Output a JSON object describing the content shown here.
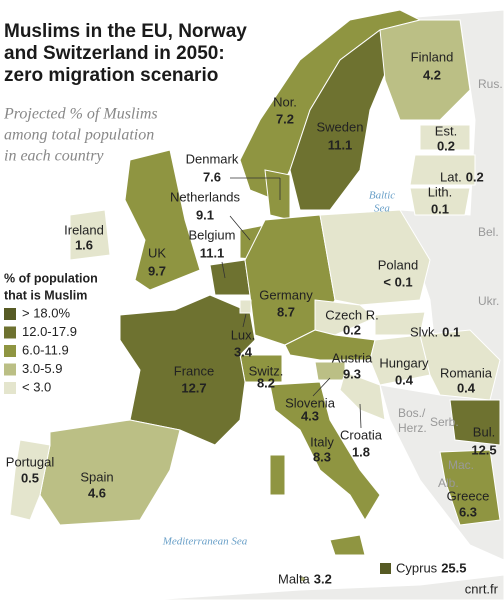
{
  "title_lines": [
    "Muslims in the EU, Norway",
    "and Switzerland in 2050:",
    "zero migration scenario"
  ],
  "subtitle_lines": [
    "Projected % of Muslims",
    "among total population",
    "in each country"
  ],
  "legend": {
    "title_lines": [
      "% of population",
      "that is Muslim"
    ],
    "items": [
      {
        "label": "> 18.0%",
        "color": "#565a24"
      },
      {
        "label": "12.0-17.9",
        "color": "#6e7230"
      },
      {
        "label": "6.0-11.9",
        "color": "#8f9541"
      },
      {
        "label": "3.0-5.9",
        "color": "#bbbf85"
      },
      {
        "label": "< 3.0",
        "color": "#e4e5cd"
      }
    ]
  },
  "countries": [
    {
      "name": "Finland",
      "value": "4.2"
    },
    {
      "name": "Nor.",
      "value": "7.2"
    },
    {
      "name": "Sweden",
      "value": "11.1"
    },
    {
      "name": "Est.",
      "value": "0.2"
    },
    {
      "name": "Lat.",
      "value": "0.2"
    },
    {
      "name": "Lith.",
      "value": "0.1"
    },
    {
      "name": "Denmark",
      "value": "7.6"
    },
    {
      "name": "Netherlands",
      "value": "9.1"
    },
    {
      "name": "Belgium",
      "value": "11.1"
    },
    {
      "name": "Ireland",
      "value": "1.6"
    },
    {
      "name": "UK",
      "value": "9.7"
    },
    {
      "name": "Poland",
      "value": "< 0.1"
    },
    {
      "name": "Germany",
      "value": "8.7"
    },
    {
      "name": "Czech R.",
      "value": "0.2"
    },
    {
      "name": "Slvk.",
      "value": "0.1"
    },
    {
      "name": "Lux.",
      "value": "3.4"
    },
    {
      "name": "France",
      "value": "12.7"
    },
    {
      "name": "Switz.",
      "value": "8.2"
    },
    {
      "name": "Austria",
      "value": "9.3"
    },
    {
      "name": "Hungary",
      "value": "0.4"
    },
    {
      "name": "Romania",
      "value": "0.4"
    },
    {
      "name": "Slovenia",
      "value": "4.3"
    },
    {
      "name": "Croatia",
      "value": "1.8"
    },
    {
      "name": "Italy",
      "value": "8.3"
    },
    {
      "name": "Bul.",
      "value": "12.5"
    },
    {
      "name": "Greece",
      "value": "6.3"
    },
    {
      "name": "Portugal",
      "value": "0.5"
    },
    {
      "name": "Spain",
      "value": "4.6"
    },
    {
      "name": "Cyprus",
      "value": "25.5"
    },
    {
      "name": "Malta",
      "value": "3.2"
    }
  ],
  "other_labels": [
    "Rus.",
    "Bel.",
    "Ukr.",
    "Serb.",
    "Bos./",
    "Herz.",
    "Mac.",
    "Alb."
  ],
  "seas": {
    "baltic_lines": [
      "Baltic",
      "Sea"
    ],
    "mediterranean": "Mediterranean Sea"
  },
  "watermark": "cnrt.fr"
}
